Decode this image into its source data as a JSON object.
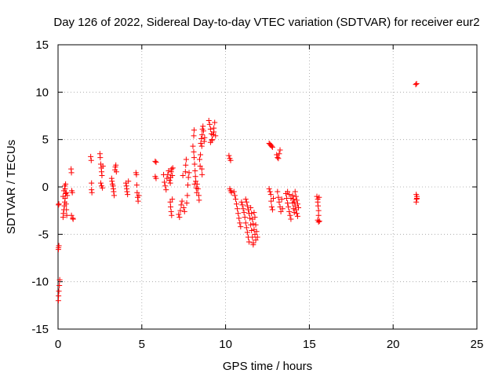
{
  "chart_data": {
    "type": "scatter",
    "title": "Day 126 of 2022, Sidereal Day-to-day VTEC variation (SDTVAR) for receiver eur2",
    "xlabel": "GPS time / hours",
    "ylabel": "SDTVAR / TECUs",
    "xlim": [
      0,
      25
    ],
    "ylim": [
      -15,
      15
    ],
    "x_ticks": [
      0,
      5,
      10,
      15,
      20,
      25
    ],
    "x_tick_labels": [
      "0",
      "5",
      "10",
      "15",
      "20",
      "25"
    ],
    "y_ticks": [
      -15,
      -10,
      -5,
      0,
      5,
      10,
      15
    ],
    "y_tick_labels": [
      "-15",
      "-10",
      "-5",
      "0",
      "5",
      "10",
      "15"
    ],
    "grid": true,
    "marker": "+",
    "color": "#ff0000",
    "series": [
      {
        "name": "SDTVAR",
        "points": [
          [
            0.02,
            -6.6
          ],
          [
            0.03,
            -6.4
          ],
          [
            0.05,
            -6.2
          ],
          [
            0.03,
            -1.9
          ],
          [
            0.05,
            -1.8
          ],
          [
            0.02,
            -12.0
          ],
          [
            0.03,
            -11.5
          ],
          [
            0.05,
            -11.0
          ],
          [
            0.08,
            -10.4
          ],
          [
            0.1,
            -9.8
          ],
          [
            0.3,
            -3.2
          ],
          [
            0.32,
            -2.8
          ],
          [
            0.35,
            -2.4
          ],
          [
            0.38,
            -2.0
          ],
          [
            0.4,
            -1.6
          ],
          [
            0.42,
            -1.2
          ],
          [
            0.45,
            -0.7
          ],
          [
            0.42,
            -0.2
          ],
          [
            0.4,
            0.1
          ],
          [
            0.45,
            0.3
          ],
          [
            0.48,
            -1.8
          ],
          [
            0.5,
            -2.4
          ],
          [
            0.52,
            -3.0
          ],
          [
            0.3,
            -1.0
          ],
          [
            0.35,
            -0.4
          ],
          [
            0.5,
            -0.6
          ],
          [
            0.55,
            -0.9
          ],
          [
            0.78,
            1.9
          ],
          [
            0.8,
            1.5
          ],
          [
            0.82,
            -0.4
          ],
          [
            0.85,
            -0.6
          ],
          [
            0.8,
            -3.0
          ],
          [
            0.88,
            -3.3
          ],
          [
            0.9,
            -3.4
          ],
          [
            1.95,
            3.2
          ],
          [
            1.98,
            2.8
          ],
          [
            2.0,
            0.4
          ],
          [
            2.0,
            -0.3
          ],
          [
            2.02,
            -0.6
          ],
          [
            2.5,
            3.5
          ],
          [
            2.52,
            3.1
          ],
          [
            2.55,
            2.4
          ],
          [
            2.58,
            2.0
          ],
          [
            2.6,
            1.6
          ],
          [
            2.62,
            1.2
          ],
          [
            2.55,
            0.4
          ],
          [
            2.6,
            0.1
          ],
          [
            2.65,
            -0.1
          ],
          [
            2.68,
            2.2
          ],
          [
            3.2,
            0.9
          ],
          [
            3.22,
            0.6
          ],
          [
            3.25,
            0.3
          ],
          [
            3.28,
            0.1
          ],
          [
            3.3,
            -0.2
          ],
          [
            3.32,
            -0.5
          ],
          [
            3.35,
            -0.9
          ],
          [
            3.4,
            1.8
          ],
          [
            3.42,
            2.1
          ],
          [
            3.45,
            2.3
          ],
          [
            3.48,
            1.6
          ],
          [
            4.05,
            0.4
          ],
          [
            4.08,
            0.1
          ],
          [
            4.1,
            -0.2
          ],
          [
            4.12,
            -0.5
          ],
          [
            4.15,
            -0.8
          ],
          [
            4.2,
            0.6
          ],
          [
            4.65,
            1.5
          ],
          [
            4.68,
            1.3
          ],
          [
            4.7,
            0.2
          ],
          [
            4.72,
            -0.6
          ],
          [
            4.75,
            -1.1
          ],
          [
            4.78,
            -1.5
          ],
          [
            4.82,
            -0.9
          ],
          [
            5.8,
            2.7
          ],
          [
            5.85,
            2.6
          ],
          [
            5.8,
            1.1
          ],
          [
            5.85,
            0.9
          ],
          [
            6.3,
            1.3
          ],
          [
            6.35,
            0.5
          ],
          [
            6.4,
            0.1
          ],
          [
            6.45,
            -0.3
          ],
          [
            6.5,
            0.9
          ],
          [
            6.55,
            1.3
          ],
          [
            6.6,
            1.7
          ],
          [
            6.65,
            0.7
          ],
          [
            6.7,
            0.4
          ],
          [
            6.72,
            1.0
          ],
          [
            6.75,
            1.6
          ],
          [
            6.78,
            1.9
          ],
          [
            6.82,
            1.2
          ],
          [
            6.85,
            2.0
          ],
          [
            6.7,
            -1.6
          ],
          [
            6.72,
            -2.1
          ],
          [
            6.75,
            -2.6
          ],
          [
            6.78,
            -3.0
          ],
          [
            6.82,
            -1.3
          ],
          [
            7.2,
            -2.9
          ],
          [
            7.25,
            -3.2
          ],
          [
            7.3,
            -2.5
          ],
          [
            7.35,
            -1.9
          ],
          [
            7.4,
            -1.5
          ],
          [
            7.45,
            1.2
          ],
          [
            7.5,
            -2.2
          ],
          [
            7.55,
            -2.6
          ],
          [
            7.6,
            1.6
          ],
          [
            7.62,
            2.3
          ],
          [
            7.65,
            2.9
          ],
          [
            7.68,
            -1.7
          ],
          [
            7.72,
            -0.9
          ],
          [
            7.75,
            0.2
          ],
          [
            7.78,
            1.0
          ],
          [
            7.82,
            1.5
          ],
          [
            8.05,
            4.3
          ],
          [
            8.1,
            3.7
          ],
          [
            8.12,
            3.1
          ],
          [
            8.15,
            2.4
          ],
          [
            8.18,
            1.7
          ],
          [
            8.2,
            1.1
          ],
          [
            8.22,
            0.6
          ],
          [
            8.25,
            -0.1
          ],
          [
            8.28,
            -0.6
          ],
          [
            8.1,
            5.4
          ],
          [
            8.12,
            6.0
          ],
          [
            8.15,
            0.3
          ],
          [
            8.3,
            0.3
          ],
          [
            8.35,
            -0.2
          ],
          [
            8.4,
            -0.9
          ],
          [
            8.42,
            -1.4
          ],
          [
            8.45,
            2.9
          ],
          [
            8.48,
            2.2
          ],
          [
            8.5,
            3.4
          ],
          [
            8.52,
            4.6
          ],
          [
            8.55,
            5.1
          ],
          [
            8.58,
            4.3
          ],
          [
            8.6,
            5.5
          ],
          [
            8.62,
            6.1
          ],
          [
            8.65,
            6.4
          ],
          [
            8.68,
            5.9
          ],
          [
            8.72,
            4.8
          ],
          [
            8.75,
            5.2
          ],
          [
            8.58,
            1.9
          ],
          [
            8.6,
            1.3
          ],
          [
            9.0,
            7.0
          ],
          [
            9.05,
            6.6
          ],
          [
            9.1,
            6.1
          ],
          [
            9.15,
            5.6
          ],
          [
            9.2,
            5.0
          ],
          [
            9.25,
            5.5
          ],
          [
            9.3,
            6.2
          ],
          [
            9.35,
            6.8
          ],
          [
            9.1,
            4.7
          ],
          [
            9.18,
            4.9
          ],
          [
            9.3,
            5.8
          ],
          [
            9.4,
            5.4
          ],
          [
            10.2,
            3.3
          ],
          [
            10.25,
            3.0
          ],
          [
            10.3,
            2.8
          ],
          [
            10.25,
            -0.2
          ],
          [
            10.3,
            -0.4
          ],
          [
            10.35,
            -0.6
          ],
          [
            10.5,
            -0.5
          ],
          [
            10.55,
            -0.9
          ],
          [
            10.6,
            -1.3
          ],
          [
            10.65,
            -1.8
          ],
          [
            10.7,
            -2.3
          ],
          [
            10.75,
            -2.8
          ],
          [
            10.8,
            -3.3
          ],
          [
            10.85,
            -3.8
          ],
          [
            10.9,
            -4.2
          ],
          [
            10.95,
            -1.6
          ],
          [
            11.0,
            -1.9
          ],
          [
            11.05,
            -2.3
          ],
          [
            11.1,
            -2.7
          ],
          [
            11.15,
            -3.2
          ],
          [
            11.2,
            -3.8
          ],
          [
            11.25,
            -4.3
          ],
          [
            11.3,
            -4.8
          ],
          [
            11.35,
            -5.3
          ],
          [
            11.4,
            -5.8
          ],
          [
            11.2,
            -1.3
          ],
          [
            11.25,
            -1.6
          ],
          [
            11.3,
            -2.0
          ],
          [
            11.35,
            -2.4
          ],
          [
            11.4,
            -2.8
          ],
          [
            11.45,
            -3.3
          ],
          [
            11.5,
            -4.0
          ],
          [
            11.55,
            -4.6
          ],
          [
            11.6,
            -5.3
          ],
          [
            11.65,
            -5.9
          ],
          [
            11.5,
            -2.2
          ],
          [
            11.55,
            -2.8
          ],
          [
            11.6,
            -3.4
          ],
          [
            11.65,
            -3.9
          ],
          [
            11.7,
            -4.5
          ],
          [
            11.75,
            -5.0
          ],
          [
            11.8,
            -5.6
          ],
          [
            11.7,
            -2.7
          ],
          [
            11.75,
            -3.2
          ],
          [
            11.8,
            -4.0
          ],
          [
            11.85,
            -4.7
          ],
          [
            11.9,
            -5.3
          ],
          [
            11.65,
            -6.1
          ],
          [
            12.6,
            4.6
          ],
          [
            12.65,
            4.5
          ],
          [
            12.7,
            4.4
          ],
          [
            12.75,
            4.3
          ],
          [
            12.8,
            4.2
          ],
          [
            12.6,
            -0.2
          ],
          [
            12.65,
            -0.5
          ],
          [
            12.7,
            -0.8
          ],
          [
            12.72,
            -1.5
          ],
          [
            12.75,
            -2.1
          ],
          [
            12.8,
            -2.4
          ],
          [
            12.85,
            -1.2
          ],
          [
            13.05,
            3.4
          ],
          [
            13.1,
            3.1
          ],
          [
            13.15,
            3.0
          ],
          [
            13.2,
            3.5
          ],
          [
            13.25,
            3.9
          ],
          [
            13.1,
            -0.5
          ],
          [
            13.15,
            -1.1
          ],
          [
            13.2,
            -1.6
          ],
          [
            13.25,
            -2.1
          ],
          [
            13.3,
            -2.6
          ],
          [
            13.35,
            -1.3
          ],
          [
            13.4,
            -2.3
          ],
          [
            13.6,
            -0.7
          ],
          [
            13.65,
            -1.2
          ],
          [
            13.7,
            -1.7
          ],
          [
            13.75,
            -2.1
          ],
          [
            13.8,
            -2.6
          ],
          [
            13.85,
            -3.0
          ],
          [
            13.9,
            -3.4
          ],
          [
            13.7,
            -0.5
          ],
          [
            13.8,
            -0.8
          ],
          [
            13.9,
            -1.2
          ],
          [
            14.0,
            -1.7
          ],
          [
            14.05,
            -2.3
          ],
          [
            14.1,
            -2.7
          ],
          [
            14.0,
            -0.9
          ],
          [
            14.05,
            -1.3
          ],
          [
            14.1,
            -1.6
          ],
          [
            14.15,
            -2.0
          ],
          [
            14.2,
            -2.4
          ],
          [
            14.25,
            -2.8
          ],
          [
            14.3,
            -3.1
          ],
          [
            14.15,
            -0.5
          ],
          [
            14.2,
            -1.0
          ],
          [
            14.25,
            -1.4
          ],
          [
            14.3,
            -1.8
          ],
          [
            14.35,
            -2.2
          ],
          [
            15.45,
            -1.0
          ],
          [
            15.5,
            -1.3
          ],
          [
            15.5,
            -1.6
          ],
          [
            15.52,
            -2.0
          ],
          [
            15.55,
            -2.5
          ],
          [
            15.55,
            -3.0
          ],
          [
            15.5,
            -3.5
          ],
          [
            15.55,
            -3.7
          ],
          [
            15.6,
            -3.6
          ],
          [
            15.58,
            -1.1
          ],
          [
            21.35,
            10.8
          ],
          [
            21.4,
            10.9
          ],
          [
            21.38,
            -0.8
          ],
          [
            21.42,
            -1.0
          ],
          [
            21.4,
            -1.3
          ],
          [
            21.38,
            -1.6
          ],
          [
            21.42,
            -1.2
          ]
        ]
      }
    ]
  }
}
